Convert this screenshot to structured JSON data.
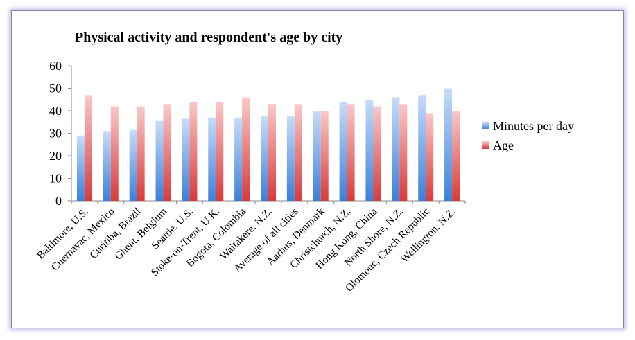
{
  "chart_data": {
    "type": "bar",
    "title": "Physical activity and respondent's age by city",
    "xlabel": "",
    "ylabel": "",
    "ylim": [
      0,
      60
    ],
    "yticks": [
      0,
      10,
      20,
      30,
      40,
      50,
      60
    ],
    "categories": [
      "Baltimore, U.S.",
      "Cuernavac, Mexico",
      "Curitiba, Brazil",
      "Ghent, Belgium",
      "Seattle. U.S.",
      "Stoke-on-Trent, U.K.",
      "Bogota. Colombia",
      "Waitakere, N.Z.",
      "Average of all cities",
      "Aarhus, Denmark",
      "Christchurch, N.Z.",
      "Hong Kong, China",
      "North Shore, N.Z.",
      "Olomouc, Czech Republic",
      "Wellington, N.Z."
    ],
    "series": [
      {
        "name": "Minutes per day",
        "color": "#4f8fe0",
        "values": [
          29,
          31,
          31.5,
          35.5,
          36.5,
          37,
          37,
          37.5,
          37.5,
          40,
          44,
          45,
          46,
          47,
          50
        ]
      },
      {
        "name": "Age",
        "color": "#e04848",
        "values": [
          47,
          42,
          42,
          43,
          44,
          44,
          46,
          43,
          43,
          40,
          43,
          42,
          43,
          39,
          40
        ]
      }
    ],
    "legend": "right",
    "grid": false
  }
}
